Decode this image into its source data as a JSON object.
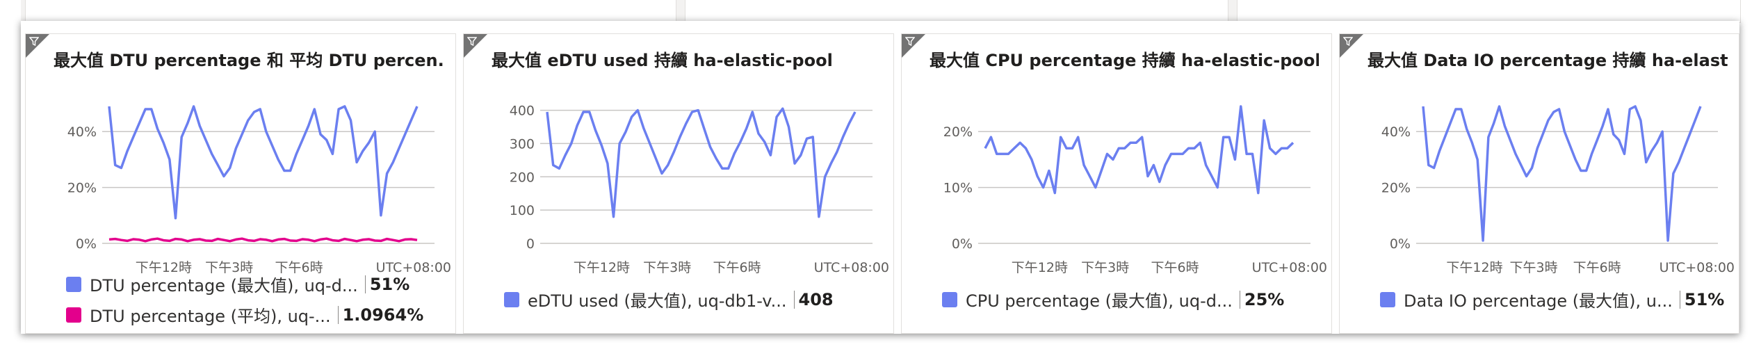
{
  "colors": {
    "series_primary": "#6b7ff0",
    "series_secondary": "#e3008c",
    "grid": "#c8c6c4",
    "axis_text": "#605e5c",
    "flag": "#737373"
  },
  "icons": {
    "tile_flag": "filter-icon"
  },
  "tiles": [
    {
      "title": "最大值 DTU percentage 和 平均 DTU percen...",
      "legend": [
        {
          "label": "DTU percentage (最大值), uq-d...",
          "value": "51%",
          "color": "#6b7ff0"
        },
        {
          "label": "DTU percentage (平均), uq-...",
          "value": "1.0964%",
          "color": "#e3008c"
        }
      ]
    },
    {
      "title": "最大值 eDTU used 持續 ha-elastic-pool",
      "legend": [
        {
          "label": "eDTU used (最大值), uq-db1-v...",
          "value": "408",
          "color": "#6b7ff0"
        }
      ]
    },
    {
      "title": "最大值 CPU percentage 持續 ha-elastic-pool",
      "legend": [
        {
          "label": "CPU percentage (最大值), uq-d...",
          "value": "25%",
          "color": "#6b7ff0"
        }
      ]
    },
    {
      "title": "最大值 Data IO percentage 持續 ha-elastic-...",
      "legend": [
        {
          "label": "Data IO percentage (最大值), u...",
          "value": "51%",
          "color": "#6b7ff0"
        }
      ]
    }
  ],
  "chart_data": [
    {
      "type": "line",
      "xtick_labels": [
        "下午12時",
        "下午3時",
        "下午6時"
      ],
      "timezone_label": "UTC+08:00",
      "yticks": [
        "0%",
        "20%",
        "40%"
      ],
      "ytick_values": [
        0,
        20,
        40
      ],
      "ylim": [
        0,
        50
      ],
      "series": [
        {
          "values": [
            49,
            28,
            27,
            33,
            38,
            43,
            48,
            48,
            41,
            36,
            30,
            9,
            38,
            43,
            49,
            42,
            37,
            32,
            28,
            24,
            27,
            34,
            39,
            44,
            47,
            48,
            40,
            35,
            30,
            26,
            26,
            32,
            37,
            42,
            48,
            39,
            37,
            32,
            48,
            49,
            44,
            29,
            33,
            36,
            40,
            10,
            25,
            29,
            34,
            39,
            44,
            49
          ],
          "color": "#6b7ff0"
        },
        {
          "values": [
            1.4,
            1.6,
            1.2,
            0.9,
            1.5,
            1.3,
            0.8,
            1.4,
            1.7,
            1.1,
            0.9,
            1.6,
            1.4,
            0.8,
            1.3,
            1.5,
            1.0,
            0.9,
            1.6,
            1.2,
            0.8,
            1.4,
            1.7,
            1.1,
            0.9,
            1.5,
            1.3,
            0.8,
            1.4,
            1.6,
            1.0,
            0.9,
            1.5,
            1.3,
            0.8,
            1.4,
            1.7,
            1.1,
            0.9,
            1.6,
            1.2,
            0.8,
            1.3,
            1.5,
            1.0,
            0.9,
            1.6,
            1.2,
            0.8,
            1.4,
            1.5,
            1.2
          ],
          "color": "#e3008c"
        }
      ]
    },
    {
      "type": "line",
      "xtick_labels": [
        "下午12時",
        "下午3時",
        "下午6時"
      ],
      "timezone_label": "UTC+08:00",
      "yticks": [
        "0",
        "100",
        "200",
        "300",
        "400"
      ],
      "ytick_values": [
        0,
        100,
        200,
        300,
        400
      ],
      "ylim": [
        0,
        420
      ],
      "series": [
        {
          "values": [
            395,
            235,
            225,
            265,
            300,
            355,
            395,
            395,
            340,
            295,
            240,
            80,
            300,
            335,
            380,
            400,
            345,
            300,
            255,
            210,
            235,
            275,
            320,
            360,
            395,
            400,
            345,
            290,
            255,
            225,
            225,
            270,
            305,
            345,
            395,
            330,
            305,
            265,
            380,
            405,
            350,
            240,
            265,
            315,
            320,
            80,
            200,
            240,
            275,
            320,
            360,
            395
          ],
          "color": "#6b7ff0"
        }
      ]
    },
    {
      "type": "line",
      "xtick_labels": [
        "下午12時",
        "下午3時",
        "下午6時"
      ],
      "timezone_label": "UTC+08:00",
      "yticks": [
        "0%",
        "10%",
        "20%"
      ],
      "ytick_values": [
        0,
        10,
        20
      ],
      "ylim": [
        0,
        25
      ],
      "series": [
        {
          "values": [
            17,
            19,
            16,
            16,
            16,
            17,
            18,
            17,
            15,
            12,
            10,
            13,
            9,
            19,
            17,
            17,
            19,
            14,
            12,
            10,
            13,
            16,
            15,
            17,
            17,
            18,
            18,
            19,
            12,
            14,
            11,
            14,
            16,
            16,
            16,
            17,
            17,
            18,
            14,
            12,
            10,
            19,
            19,
            15,
            24.5,
            16,
            16,
            9,
            22,
            17,
            16,
            17,
            17,
            18
          ],
          "color": "#6b7ff0"
        }
      ]
    },
    {
      "type": "line",
      "xtick_labels": [
        "下午12時",
        "下午3時",
        "下午6時"
      ],
      "timezone_label": "UTC+08:00",
      "yticks": [
        "0%",
        "20%",
        "40%"
      ],
      "ytick_values": [
        0,
        20,
        40
      ],
      "ylim": [
        0,
        50
      ],
      "series": [
        {
          "values": [
            49,
            28,
            27,
            33,
            38,
            43,
            48,
            48,
            41,
            36,
            30,
            1,
            38,
            43,
            49,
            42,
            37,
            32,
            28,
            24,
            27,
            34,
            39,
            44,
            47,
            48,
            40,
            35,
            30,
            26,
            26,
            32,
            37,
            42,
            48,
            39,
            37,
            32,
            48,
            49,
            44,
            29,
            33,
            36,
            40,
            1,
            25,
            29,
            34,
            39,
            44,
            49
          ],
          "color": "#6b7ff0"
        }
      ]
    }
  ]
}
